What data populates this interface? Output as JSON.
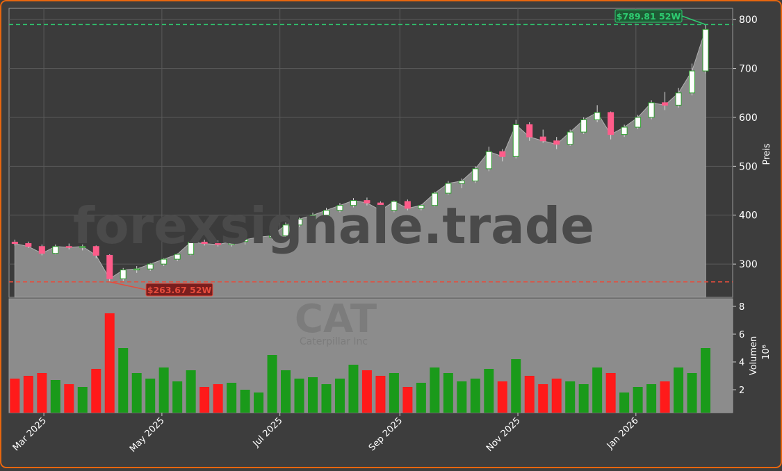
{
  "chart_data": {
    "type": "candlestick",
    "watermark": "forexsignale.trade",
    "symbol": "CAT",
    "company": "Caterpillar Inc",
    "y_label": "Preis",
    "volume_label": "Volumen",
    "volume_exponent": "10⁶",
    "x": [
      20133,
      20140,
      20147,
      20154,
      20161,
      20168,
      20175,
      20182,
      20189,
      20196,
      20203,
      20210,
      20217,
      20224,
      20231,
      20238,
      20245,
      20252,
      20259,
      20266,
      20273,
      20280,
      20287,
      20294,
      20301,
      20308,
      20315,
      20322,
      20329,
      20336,
      20343,
      20350,
      20357,
      20364,
      20371,
      20378,
      20385,
      20392,
      20399,
      20406,
      20413,
      20420,
      20427,
      20434,
      20441,
      20448,
      20455,
      20462,
      20469,
      20476,
      20483,
      20490
    ],
    "open": [
      345,
      342,
      336,
      322,
      336,
      334,
      336,
      318,
      270,
      288,
      290,
      300,
      310,
      320,
      345,
      342,
      340,
      346,
      350,
      355,
      358,
      380,
      392,
      400,
      410,
      420,
      430,
      425,
      410,
      428,
      414,
      420,
      445,
      465,
      470,
      495,
      530,
      520,
      585,
      560,
      552,
      545,
      570,
      595,
      610,
      565,
      580,
      600,
      630,
      625,
      650,
      695
    ],
    "high": [
      350,
      346,
      340,
      340,
      342,
      340,
      338,
      320,
      292,
      296,
      302,
      312,
      322,
      348,
      350,
      348,
      350,
      352,
      358,
      362,
      385,
      395,
      405,
      415,
      425,
      435,
      436,
      428,
      430,
      432,
      422,
      448,
      470,
      475,
      500,
      540,
      535,
      595,
      590,
      575,
      560,
      575,
      600,
      625,
      612,
      585,
      605,
      635,
      652,
      660,
      710,
      789.81
    ],
    "low": [
      338,
      333,
      318,
      320,
      330,
      328,
      312,
      263.67,
      265,
      282,
      286,
      296,
      306,
      318,
      338,
      336,
      336,
      340,
      346,
      350,
      356,
      376,
      388,
      396,
      406,
      416,
      420,
      402,
      406,
      410,
      410,
      418,
      442,
      455,
      466,
      490,
      510,
      516,
      552,
      548,
      535,
      542,
      566,
      590,
      555,
      560,
      576,
      596,
      615,
      620,
      645,
      690
    ],
    "close": [
      342,
      336,
      322,
      336,
      334,
      336,
      318,
      270,
      288,
      290,
      300,
      310,
      320,
      345,
      342,
      340,
      346,
      350,
      355,
      358,
      380,
      392,
      400,
      410,
      420,
      430,
      425,
      410,
      428,
      414,
      420,
      445,
      465,
      470,
      495,
      530,
      520,
      585,
      560,
      552,
      545,
      570,
      595,
      610,
      565,
      580,
      600,
      630,
      625,
      650,
      695,
      780
    ],
    "volume": [
      2.8,
      3.0,
      3.2,
      2.7,
      2.4,
      2.2,
      3.5,
      7.5,
      5.0,
      3.2,
      2.8,
      3.6,
      2.6,
      3.4,
      2.2,
      2.4,
      2.5,
      2.0,
      1.8,
      4.5,
      3.4,
      2.8,
      2.9,
      2.4,
      2.8,
      3.8,
      3.4,
      3.0,
      3.2,
      2.2,
      2.5,
      3.6,
      3.2,
      2.6,
      2.8,
      3.5,
      2.6,
      4.2,
      3.0,
      2.4,
      2.8,
      2.6,
      2.4,
      3.6,
      3.2,
      1.8,
      2.2,
      2.4,
      2.6,
      3.6,
      3.2,
      5.0
    ],
    "up_color": "#2ca02c",
    "down_color": "#ff5c8a",
    "volume_up_color": "#1a9a1a",
    "volume_down_color": "#ff1a1a",
    "area_color": "#8a8a8a",
    "xlim": [
      20130,
      20504
    ],
    "xticks": [
      {
        "value": 20148,
        "label": "Mar 2025"
      },
      {
        "value": 20209,
        "label": "May 2025"
      },
      {
        "value": 20270,
        "label": "Jul 2025"
      },
      {
        "value": 20332,
        "label": "Sep 2025"
      },
      {
        "value": 20393,
        "label": "Nov 2025"
      },
      {
        "value": 20454,
        "label": "Jan 2026"
      }
    ],
    "ylim": [
      232,
      823
    ],
    "yticks": [
      300,
      400,
      500,
      600,
      700,
      800
    ],
    "volume_ylim": [
      0.35,
      8.55
    ],
    "volume_yticks": [
      2,
      4,
      6,
      8
    ],
    "grid": true,
    "hlines": [
      {
        "value": 789.81,
        "color": "#2ecc71",
        "label": "$789.81 52W"
      },
      {
        "value": 263.67,
        "color": "#e74c3c",
        "label": "$263.67 52W"
      }
    ]
  }
}
